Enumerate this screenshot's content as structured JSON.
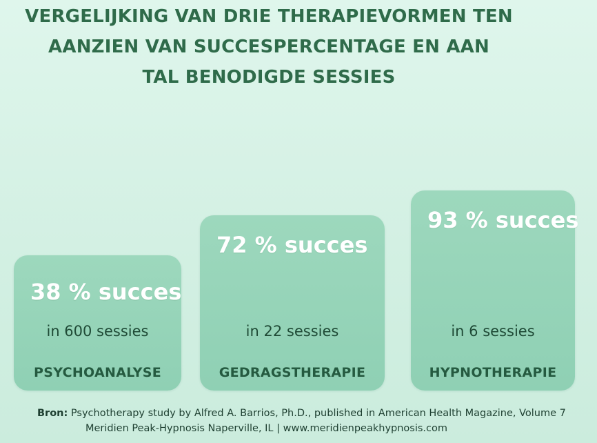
{
  "chart_data": {
    "type": "bar",
    "title_lines": [
      "VERGELIJKING VAN DRIE THERAPIEVORMEN TEN",
      "AANZIEN VAN SUCCESPERCENTAGE EN AAN",
      "TAL BENODIGDE SESSIES"
    ],
    "categories": [
      "PSYCHOANALYSE",
      "GEDRAGSTHERAPIE",
      "HYPNOTHERAPIE"
    ],
    "values": [
      38,
      72,
      93
    ],
    "value_labels": [
      "38 % succes",
      "72 % succes",
      "93 % succes"
    ],
    "sessions": [
      600,
      22,
      6
    ],
    "session_labels": [
      "in 600 sessies",
      "in 22 sessies",
      "in 6 sessies"
    ],
    "ylim": [
      0,
      100
    ],
    "grid": false,
    "legend": "none",
    "colors": {
      "bar": "#9dd8bd",
      "title": "#2f6b4a",
      "value_text": "#ffffff"
    }
  },
  "source": {
    "label": "Bron:",
    "line1": "Psychotherapy study by Alfred A. Barrios, Ph.D., published in American Health Magazine, Volume 7",
    "line2": "Meridien Peak-Hypnosis Naperville, IL | www.meridienpeakhypnosis.com"
  }
}
